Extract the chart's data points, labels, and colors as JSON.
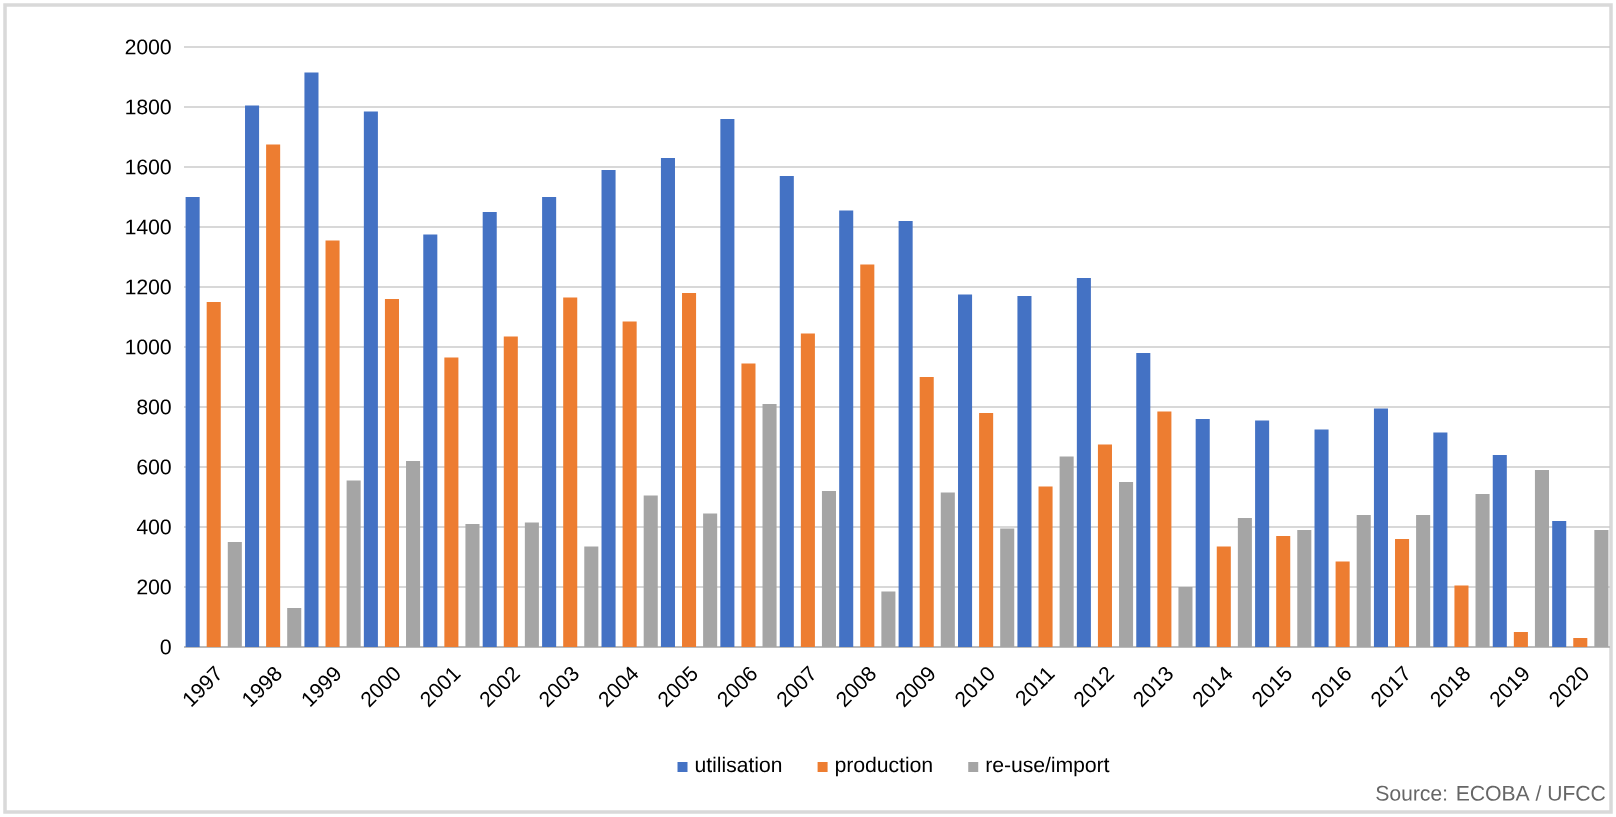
{
  "chart_data": {
    "type": "bar",
    "categories": [
      "1997",
      "1998",
      "1999",
      "2000",
      "2001",
      "2002",
      "2003",
      "2004",
      "2005",
      "2006",
      "2007",
      "2008",
      "2009",
      "2010",
      "2011",
      "2012",
      "2013",
      "2014",
      "2015",
      "2016",
      "2017",
      "2018",
      "2019",
      "2020"
    ],
    "series": [
      {
        "name": "utilisation",
        "color": "#4472c4",
        "values": [
          1500,
          1805,
          1915,
          1785,
          1375,
          1450,
          1500,
          1590,
          1630,
          1760,
          1570,
          1455,
          1420,
          1175,
          1170,
          1230,
          980,
          760,
          755,
          725,
          795,
          715,
          640,
          420
        ]
      },
      {
        "name": "production",
        "color": "#ed7d31",
        "values": [
          1150,
          1675,
          1355,
          1160,
          965,
          1035,
          1165,
          1085,
          1180,
          945,
          1045,
          1275,
          900,
          780,
          535,
          675,
          785,
          335,
          370,
          285,
          360,
          205,
          50,
          30
        ]
      },
      {
        "name": "re-use/import",
        "color": "#a5a5a5",
        "values": [
          350,
          130,
          555,
          620,
          410,
          415,
          335,
          505,
          445,
          810,
          520,
          185,
          515,
          395,
          635,
          550,
          200,
          430,
          390,
          440,
          440,
          510,
          590,
          390
        ]
      }
    ],
    "ylim": [
      0,
      2000
    ],
    "yticks": [
      0,
      200,
      400,
      600,
      800,
      1000,
      1200,
      1400,
      1600,
      1800,
      2000
    ],
    "grid": "y",
    "legend": "bottom",
    "annotations": [
      "Source:  ECOBA / UFCC"
    ]
  }
}
